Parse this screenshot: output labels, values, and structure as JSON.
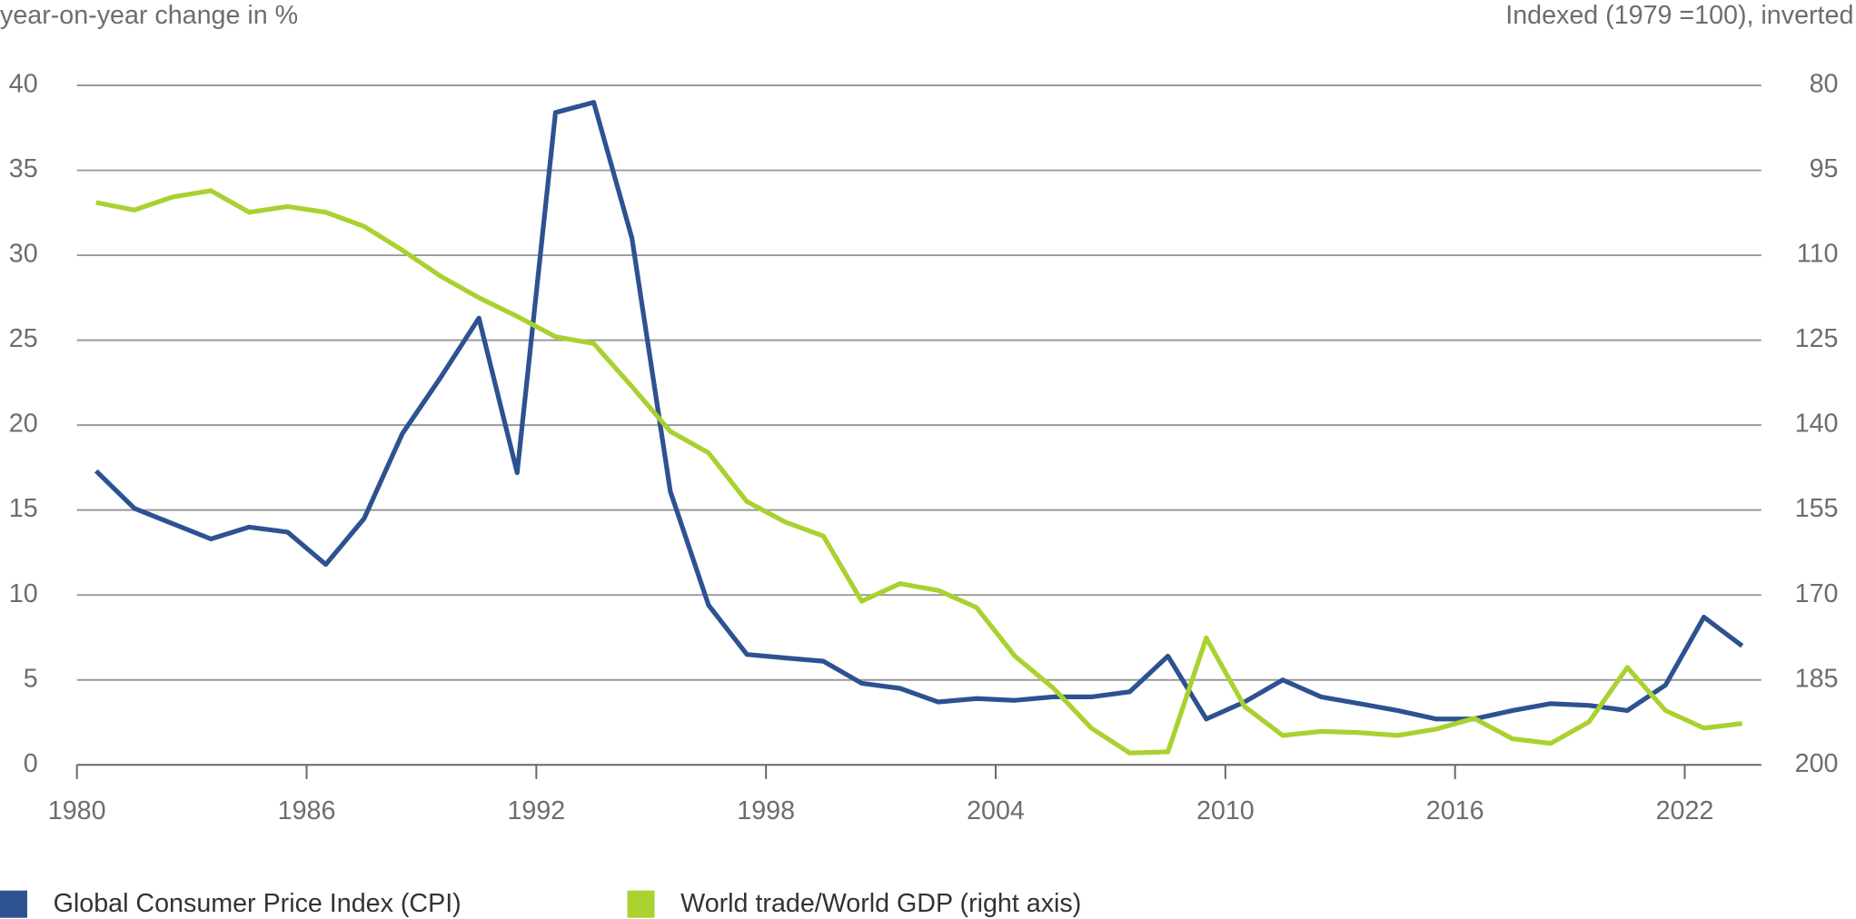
{
  "chart_data": {
    "type": "line",
    "y_axis_label": "year-on-year change in %",
    "y2_axis_label": "Indexed (1979 =100), inverted",
    "x": [
      1980.5,
      1981.5,
      1982.5,
      1983.5,
      1984.5,
      1985.5,
      1986.5,
      1987.5,
      1988.5,
      1989.5,
      1990.5,
      1991.5,
      1992.5,
      1993.5,
      1994.5,
      1995.5,
      1996.5,
      1997.5,
      1998.5,
      1999.5,
      2000.5,
      2001.5,
      2002.5,
      2003.5,
      2004.5,
      2005.5,
      2006.5,
      2007.5,
      2008.5,
      2009.5,
      2010.5,
      2011.5,
      2012.5,
      2013.5,
      2014.5,
      2015.5,
      2016.5,
      2017.5,
      2018.5,
      2019.5,
      2020.5,
      2021.5,
      2022.5,
      2023.5
    ],
    "xlim": [
      1980,
      2024
    ],
    "xticks": [
      1980,
      1986,
      1992,
      1998,
      2004,
      2010,
      2016,
      2022
    ],
    "ylim": [
      0,
      40
    ],
    "yticks": [
      0,
      5,
      10,
      15,
      20,
      25,
      30,
      35,
      40
    ],
    "y2lim": [
      200,
      80
    ],
    "y2ticks": [
      200,
      185,
      170,
      155,
      140,
      125,
      110,
      95,
      80
    ],
    "y2_inverted": true,
    "grid": true,
    "legend": "bottom",
    "series": [
      {
        "name": "Global Consumer Price Index (CPI)",
        "color": "#2d5291",
        "values": [
          17.3,
          15.1,
          14.2,
          13.3,
          14.0,
          13.7,
          11.8,
          14.5,
          19.5,
          22.8,
          26.3,
          17.2,
          38.4,
          39.0,
          31.0,
          16.1,
          9.4,
          6.5,
          6.3,
          6.1,
          4.8,
          4.5,
          3.7,
          3.9,
          3.8,
          4.0,
          4.0,
          4.3,
          6.4,
          2.7,
          3.7,
          5.0,
          4.0,
          3.6,
          3.2,
          2.7,
          2.7,
          3.2,
          3.6,
          3.5,
          3.2,
          4.7,
          8.7,
          7.0
        ]
      },
      {
        "name": "World trade/World GDP (right axis)",
        "color": "#a9d130",
        "axis": "y2",
        "values": [
          100.7,
          102.0,
          99.7,
          98.6,
          102.4,
          101.4,
          102.4,
          104.9,
          109.1,
          113.7,
          117.5,
          120.8,
          124.4,
          125.6,
          133.2,
          141.1,
          144.9,
          153.5,
          157.1,
          159.6,
          171.1,
          168.0,
          169.2,
          172.2,
          180.8,
          186.4,
          193.5,
          197.9,
          197.7,
          177.6,
          189.7,
          194.8,
          194.1,
          194.3,
          194.8,
          193.7,
          191.8,
          195.4,
          196.2,
          192.4,
          182.8,
          190.4,
          193.5,
          192.7
        ]
      }
    ]
  }
}
